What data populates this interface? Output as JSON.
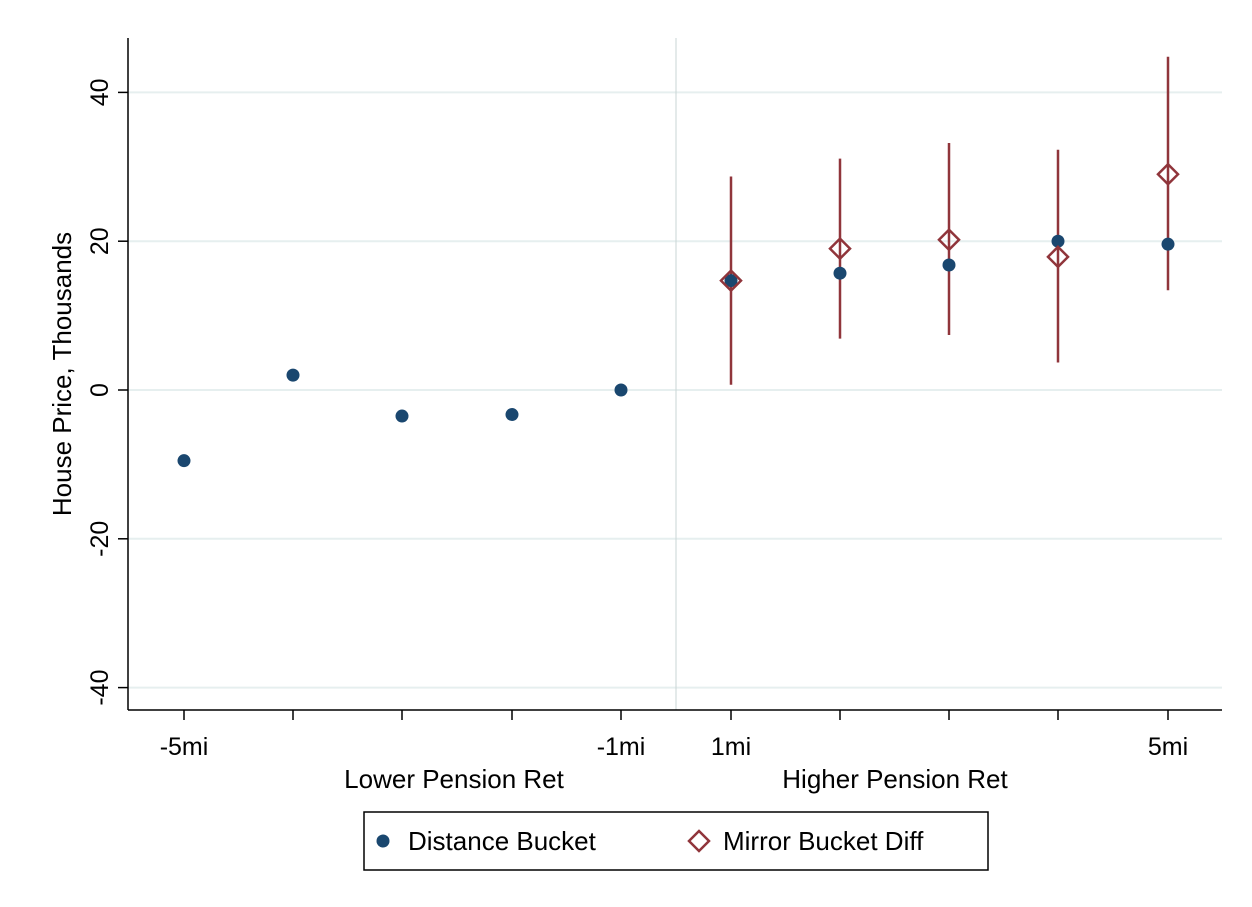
{
  "chart_data": {
    "type": "scatter",
    "title": "",
    "ylabel": "House Price, Thousands",
    "ylim": [
      -40,
      40
    ],
    "y_ticks": [
      "-40",
      "-20",
      "0",
      "20",
      "40"
    ],
    "y_tick_values": [
      -40,
      -20,
      0,
      20,
      40
    ],
    "grid": true,
    "x_categories": [
      -5,
      -4,
      -3,
      -2,
      -1,
      1,
      2,
      3,
      4,
      5
    ],
    "x_tick_labels": [
      {
        "x": -5,
        "label": "-5mi"
      },
      {
        "x": -1,
        "label": "-1mi"
      },
      {
        "x": 1,
        "label": "1mi"
      },
      {
        "x": 5,
        "label": "5mi"
      }
    ],
    "group_labels": {
      "left": "Lower Pension Ret",
      "right": "Higher Pension Ret"
    },
    "divider_between": [
      -1,
      1
    ],
    "legend_position": "bottom",
    "colors": {
      "distance": "#1a476f",
      "mirror": "#90353b",
      "grid": "#e6efef",
      "divider": "#c9d4d4"
    },
    "series": [
      {
        "name": "Distance Bucket",
        "marker": "filled-circle",
        "x": [
          -5,
          -4,
          -3,
          -2,
          -1,
          1,
          2,
          3,
          4,
          5
        ],
        "y": [
          -9.5,
          2.0,
          -3.5,
          -3.3,
          0.0,
          14.7,
          15.7,
          16.8,
          20.0,
          19.6
        ]
      },
      {
        "name": "Mirror Bucket Diff",
        "marker": "hollow-diamond",
        "x": [
          1,
          2,
          3,
          4,
          5
        ],
        "y": [
          14.7,
          19.0,
          20.2,
          17.9,
          29.0
        ],
        "ci_low": [
          0.7,
          6.9,
          7.4,
          3.7,
          13.4
        ],
        "ci_high": [
          28.7,
          31.1,
          33.2,
          32.3,
          44.8
        ]
      }
    ]
  }
}
